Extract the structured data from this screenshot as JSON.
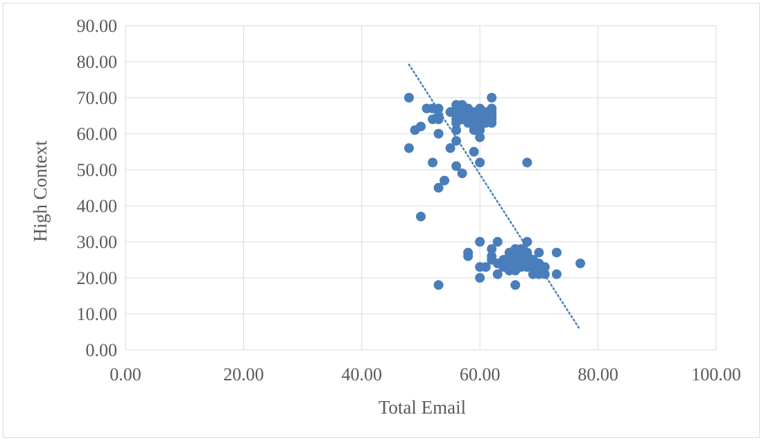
{
  "chart_data": {
    "type": "scatter",
    "xlabel": "Total Email",
    "ylabel": "High Context",
    "xlim": [
      0,
      100
    ],
    "ylim": [
      0,
      90
    ],
    "x_ticks": [
      "0.00",
      "20.00",
      "40.00",
      "60.00",
      "80.00",
      "100.00"
    ],
    "y_ticks": [
      "0.00",
      "10.00",
      "20.00",
      "30.00",
      "40.00",
      "50.00",
      "60.00",
      "70.00",
      "80.00",
      "90.00"
    ],
    "grid": true,
    "legend": "none",
    "marker_color": "#4a7ebb",
    "trendline": {
      "type": "linear",
      "style": "dotted",
      "x": [
        48,
        77
      ],
      "y": [
        79.2,
        5.5
      ]
    },
    "points": [
      [
        48,
        70
      ],
      [
        48,
        56
      ],
      [
        49,
        61
      ],
      [
        50,
        62
      ],
      [
        50,
        37
      ],
      [
        51,
        67
      ],
      [
        52,
        67
      ],
      [
        52,
        64
      ],
      [
        52,
        52
      ],
      [
        53,
        67
      ],
      [
        53,
        64
      ],
      [
        53,
        65
      ],
      [
        53,
        60
      ],
      [
        53,
        45
      ],
      [
        53,
        18
      ],
      [
        54,
        47
      ],
      [
        55,
        66
      ],
      [
        55,
        56
      ],
      [
        56,
        68
      ],
      [
        56,
        67
      ],
      [
        56,
        65
      ],
      [
        56,
        64
      ],
      [
        56,
        63
      ],
      [
        56,
        61
      ],
      [
        56,
        58
      ],
      [
        56,
        51
      ],
      [
        57,
        68
      ],
      [
        57,
        67
      ],
      [
        57,
        66
      ],
      [
        57,
        65
      ],
      [
        57,
        64
      ],
      [
        57,
        49
      ],
      [
        58,
        67
      ],
      [
        58,
        66
      ],
      [
        58,
        65
      ],
      [
        58,
        64
      ],
      [
        58,
        63
      ],
      [
        58,
        27
      ],
      [
        58,
        26
      ],
      [
        59,
        66
      ],
      [
        59,
        65
      ],
      [
        59,
        64
      ],
      [
        59,
        63
      ],
      [
        59,
        62
      ],
      [
        59,
        61
      ],
      [
        59,
        55
      ],
      [
        60,
        67
      ],
      [
        60,
        66
      ],
      [
        60,
        65
      ],
      [
        60,
        64
      ],
      [
        60,
        63
      ],
      [
        60,
        62
      ],
      [
        60,
        61
      ],
      [
        60,
        59
      ],
      [
        60,
        52
      ],
      [
        60,
        30
      ],
      [
        60,
        23
      ],
      [
        60,
        20
      ],
      [
        61,
        66
      ],
      [
        61,
        65
      ],
      [
        61,
        64
      ],
      [
        61,
        63
      ],
      [
        61,
        23
      ],
      [
        62,
        70
      ],
      [
        62,
        67
      ],
      [
        62,
        66
      ],
      [
        62,
        65
      ],
      [
        62,
        64
      ],
      [
        62,
        63
      ],
      [
        62,
        28
      ],
      [
        62,
        26
      ],
      [
        62,
        25
      ],
      [
        63,
        30
      ],
      [
        63,
        24
      ],
      [
        63,
        21
      ],
      [
        64,
        25
      ],
      [
        64,
        24
      ],
      [
        64,
        23
      ],
      [
        65,
        27
      ],
      [
        65,
        26
      ],
      [
        65,
        25
      ],
      [
        65,
        24
      ],
      [
        65,
        22
      ],
      [
        66,
        28
      ],
      [
        66,
        27
      ],
      [
        66,
        26
      ],
      [
        66,
        25
      ],
      [
        66,
        24
      ],
      [
        66,
        22
      ],
      [
        66,
        18
      ],
      [
        67,
        28
      ],
      [
        67,
        27
      ],
      [
        67,
        26
      ],
      [
        67,
        25
      ],
      [
        67,
        24
      ],
      [
        67,
        23
      ],
      [
        68,
        30
      ],
      [
        68,
        52
      ],
      [
        68,
        27
      ],
      [
        68,
        25
      ],
      [
        68,
        23
      ],
      [
        69,
        25
      ],
      [
        69,
        24
      ],
      [
        69,
        23
      ],
      [
        69,
        21
      ],
      [
        70,
        27
      ],
      [
        70,
        24
      ],
      [
        70,
        23
      ],
      [
        70,
        21
      ],
      [
        71,
        23
      ],
      [
        71,
        21
      ],
      [
        73,
        27
      ],
      [
        73,
        21
      ],
      [
        77,
        24
      ]
    ]
  }
}
